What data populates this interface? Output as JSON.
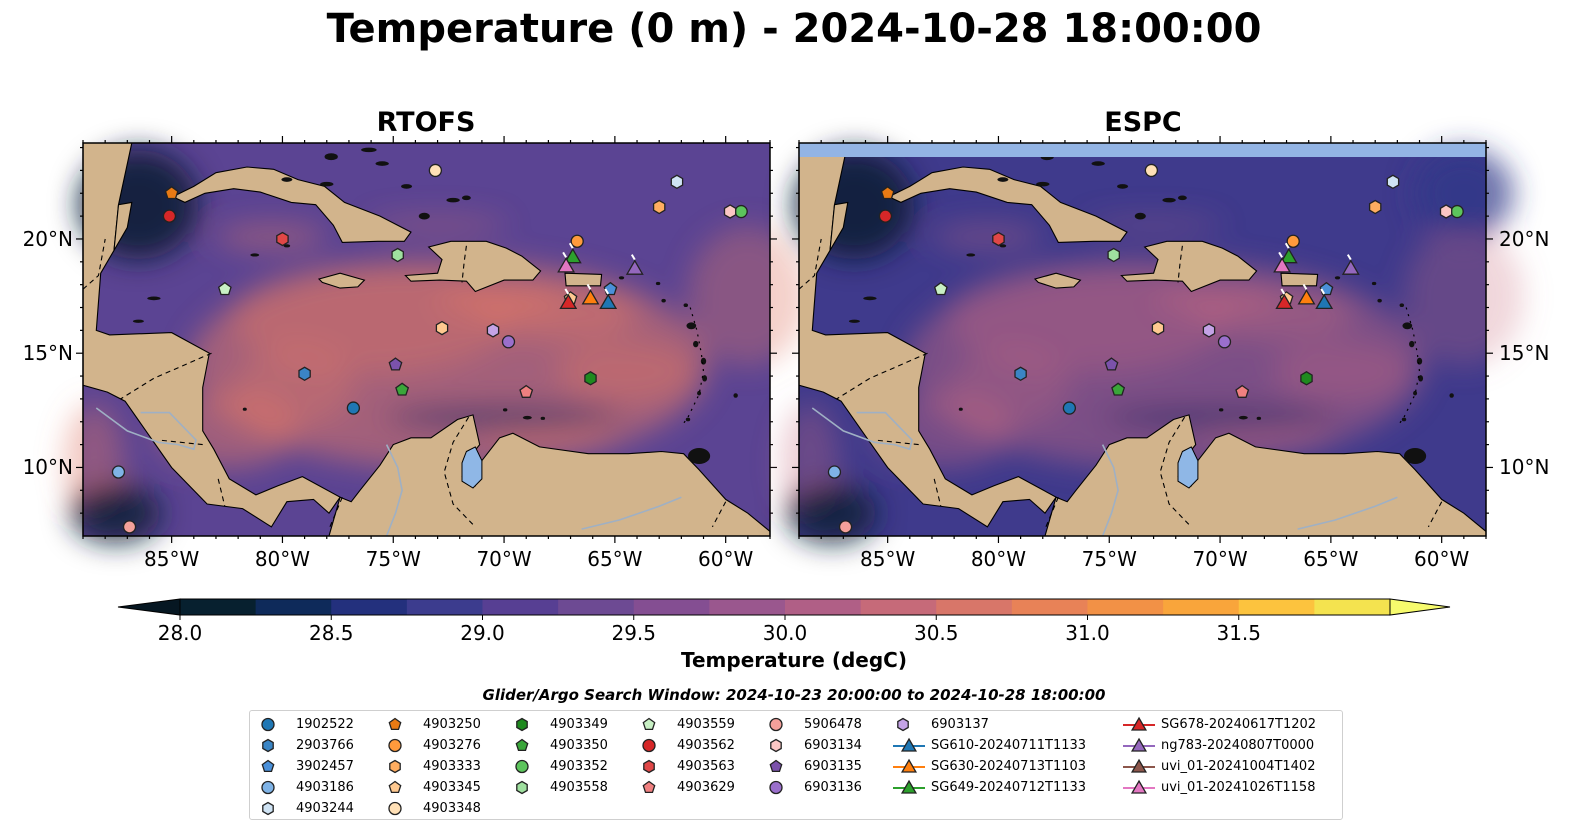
{
  "title": "Temperature (0 m) - 2024-10-28 18:00:00",
  "panels": [
    {
      "title": "RTOFS",
      "kind": "rtofs"
    },
    {
      "title": "ESPC",
      "kind": "espc"
    }
  ],
  "lat_ticks": [
    "20°N",
    "15°N",
    "10°N"
  ],
  "lon_ticks": [
    "85°W",
    "80°W",
    "75°W",
    "70°W",
    "65°W",
    "60°W"
  ],
  "colorbar": {
    "label": "Temperature (degC)",
    "ticks": [
      "28.0",
      "28.5",
      "29.0",
      "29.5",
      "30.0",
      "30.5",
      "31.0",
      "31.5"
    ],
    "min": 28.0,
    "max": 31.5,
    "step": 0.25,
    "colors": [
      "#07202f",
      "#0e2a5a",
      "#23307d",
      "#3c3c8e",
      "#573f93",
      "#6d4a93",
      "#844e92",
      "#9a578e",
      "#b05f86",
      "#c66a79",
      "#d87669",
      "#e88257",
      "#f29146",
      "#f9a53b",
      "#fcc33e",
      "#f4e34f"
    ]
  },
  "search_window": "Glider/Argo Search Window: 2024-10-23 20:00:00 to 2024-10-28 18:00:00",
  "legend": [
    {
      "label": "1902522",
      "color": "#1f77b4",
      "marker": "circle"
    },
    {
      "label": "2903766",
      "color": "#3a85c5",
      "marker": "hexagon"
    },
    {
      "label": "3902457",
      "color": "#4a90d9",
      "marker": "pentagon"
    },
    {
      "label": "4903186",
      "color": "#7fb3e6",
      "marker": "circle"
    },
    {
      "label": "4903244",
      "color": "#cfe3f4",
      "marker": "hexagon"
    },
    {
      "label": "4903250",
      "color": "#e87a14",
      "marker": "pentagon"
    },
    {
      "label": "4903276",
      "color": "#ff9a3c",
      "marker": "circle"
    },
    {
      "label": "4903333",
      "color": "#ffad60",
      "marker": "hexagon"
    },
    {
      "label": "4903345",
      "color": "#ffc990",
      "marker": "pentagon"
    },
    {
      "label": "4903348",
      "color": "#ffe0b6",
      "marker": "circle"
    },
    {
      "label": "4903349",
      "color": "#1f8a1f",
      "marker": "hexagon"
    },
    {
      "label": "4903350",
      "color": "#3aa63a",
      "marker": "pentagon"
    },
    {
      "label": "4903352",
      "color": "#5cc45c",
      "marker": "circle"
    },
    {
      "label": "4903558",
      "color": "#9fe09f",
      "marker": "hexagon"
    },
    {
      "label": "4903559",
      "color": "#c8f0c4",
      "marker": "pentagon"
    },
    {
      "label": "4903562",
      "color": "#d62728",
      "marker": "circle"
    },
    {
      "label": "4903563",
      "color": "#e04747",
      "marker": "hexagon"
    },
    {
      "label": "4903629",
      "color": "#f08080",
      "marker": "pentagon"
    },
    {
      "label": "5906478",
      "color": "#f4a09a",
      "marker": "circle"
    },
    {
      "label": "6903134",
      "color": "#fbc7c4",
      "marker": "hexagon"
    },
    {
      "label": "6903135",
      "color": "#7b52ab",
      "marker": "pentagon"
    },
    {
      "label": "6903136",
      "color": "#9a6fcc",
      "marker": "circle"
    },
    {
      "label": "6903137",
      "color": "#c4a3e6",
      "marker": "hexagon"
    },
    {
      "label": "SG610-20240711T1133",
      "color": "#1f77b4",
      "marker": "triangle"
    },
    {
      "label": "SG630-20240713T1103",
      "color": "#ff7f0e",
      "marker": "triangle"
    },
    {
      "label": "SG649-20240712T1133",
      "color": "#2ca02c",
      "marker": "triangle"
    },
    {
      "label": "SG678-20240617T1202",
      "color": "#d62728",
      "marker": "triangle"
    },
    {
      "label": "ng783-20240807T0000",
      "color": "#9467bd",
      "marker": "triangle"
    },
    {
      "label": "uvi_01-20241004T1402",
      "color": "#8c564b",
      "marker": "triangle"
    },
    {
      "label": "uvi_01-20241026T1158",
      "color": "#e377c2",
      "marker": "triangle"
    }
  ],
  "floats": [
    {
      "id": "1902522",
      "lon": -76.8,
      "lat": 12.6
    },
    {
      "id": "2903766",
      "lon": -79.0,
      "lat": 14.1
    },
    {
      "id": "3902457",
      "lon": -65.2,
      "lat": 17.8
    },
    {
      "id": "4903186",
      "lon": -87.4,
      "lat": 9.8
    },
    {
      "id": "4903244",
      "lon": -62.2,
      "lat": 22.5
    },
    {
      "id": "4903250",
      "lon": -85.0,
      "lat": 22.0
    },
    {
      "id": "4903276",
      "lon": -66.7,
      "lat": 19.9
    },
    {
      "id": "4903333",
      "lon": -63.0,
      "lat": 21.4
    },
    {
      "id": "4903345",
      "lon": -67.0,
      "lat": 17.4
    },
    {
      "id": "4903348",
      "lon": -73.1,
      "lat": 23.0
    },
    {
      "id": "4903349",
      "lon": -66.1,
      "lat": 13.9
    },
    {
      "id": "4903350",
      "lon": -74.6,
      "lat": 13.4
    },
    {
      "id": "4903352",
      "lon": -59.3,
      "lat": 21.2
    },
    {
      "id": "4903558",
      "lon": -74.8,
      "lat": 19.3
    },
    {
      "id": "4903559",
      "lon": -82.6,
      "lat": 17.8
    },
    {
      "id": "4903562",
      "lon": -85.1,
      "lat": 21.0
    },
    {
      "id": "4903563",
      "lon": -80.0,
      "lat": 20.0
    },
    {
      "id": "4903629",
      "lon": -69.0,
      "lat": 13.3
    },
    {
      "id": "5906478",
      "lon": -86.9,
      "lat": 7.4
    },
    {
      "id": "6903134",
      "lon": -59.8,
      "lat": 21.2
    },
    {
      "id": "6903135",
      "lon": -74.9,
      "lat": 14.5
    },
    {
      "id": "6903136",
      "lon": -69.8,
      "lat": 15.5
    },
    {
      "id": "6903137",
      "lon": -70.5,
      "lat": 16.0
    }
  ],
  "extra_floats": [
    {
      "color": "#ffc990",
      "marker": "hexagon",
      "lon": -72.8,
      "lat": 16.1
    }
  ],
  "gliders": [
    {
      "id": "SG610-20240711T1133",
      "lon": -65.3,
      "lat": 17.2
    },
    {
      "id": "SG630-20240713T1103",
      "lon": -66.1,
      "lat": 17.4
    },
    {
      "id": "SG649-20240712T1133",
      "lon": -66.9,
      "lat": 19.2
    },
    {
      "id": "SG678-20240617T1202",
      "lon": -67.1,
      "lat": 17.2
    },
    {
      "id": "ng783-20240807T0000",
      "lon": -64.1,
      "lat": 18.7
    },
    {
      "id": "uvi_01-20241026T1158",
      "lon": -67.2,
      "lat": 18.8
    }
  ]
}
